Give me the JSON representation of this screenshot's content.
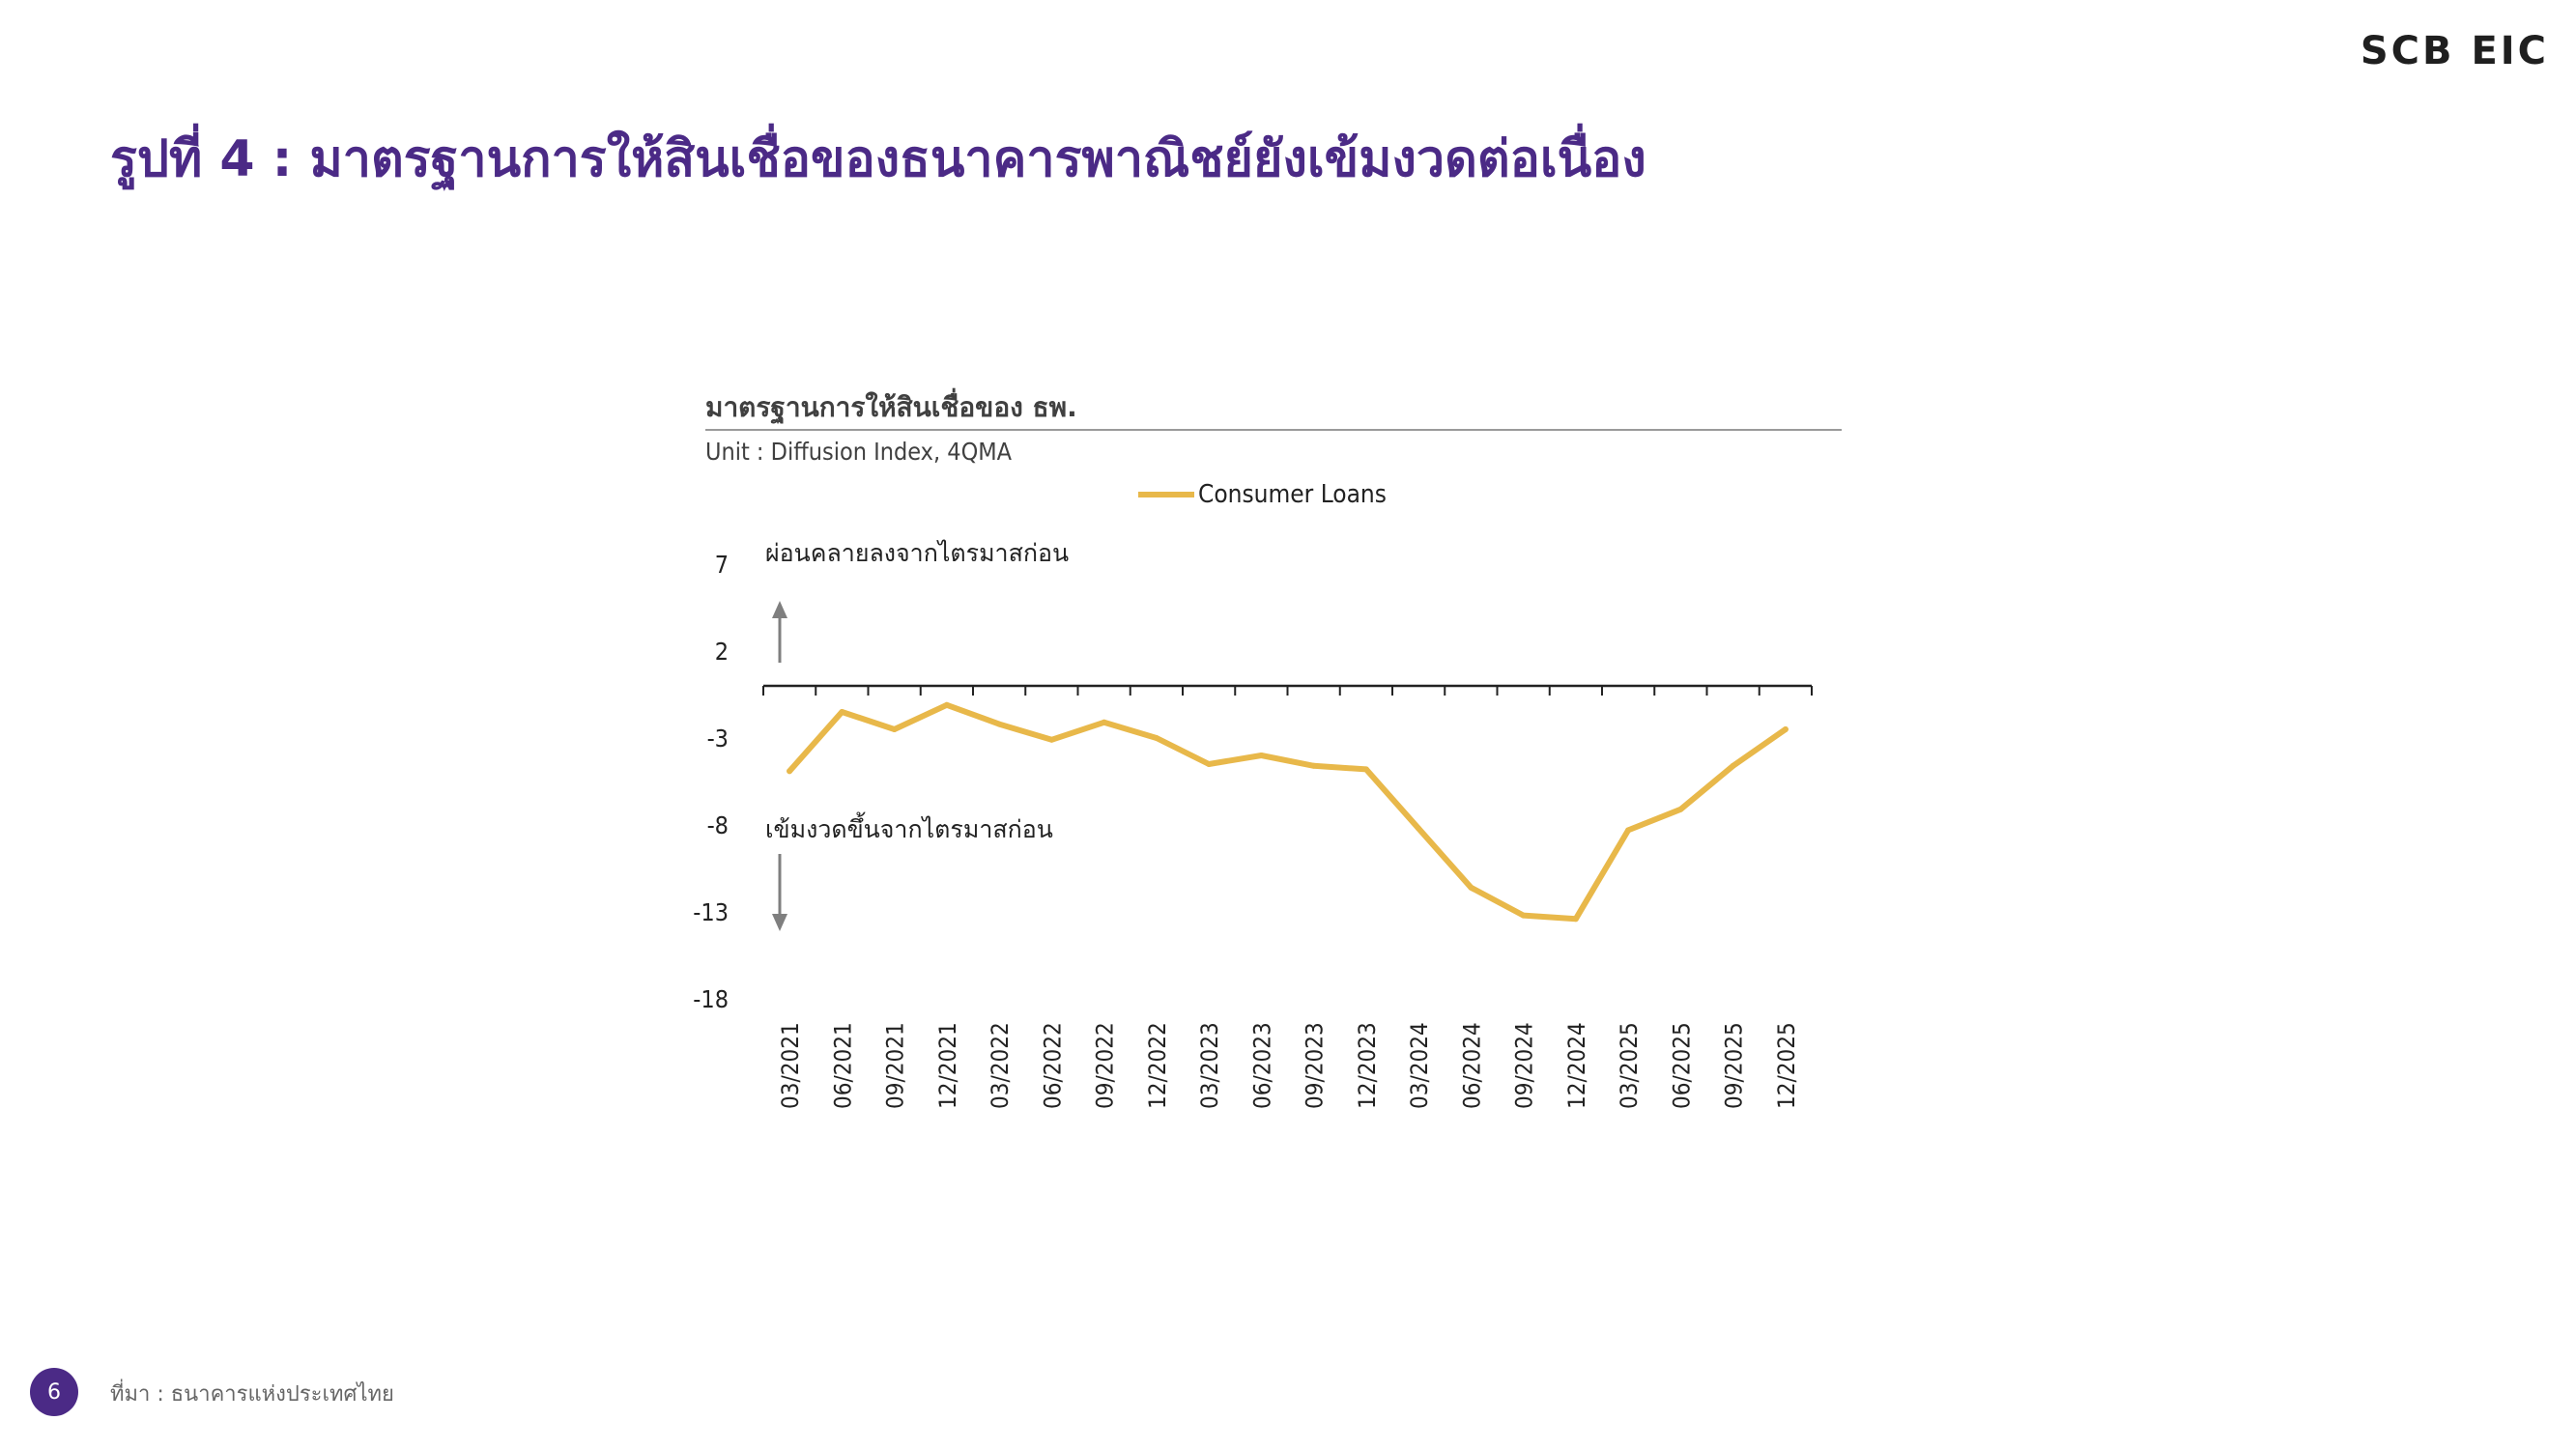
{
  "logo": "SCB EIC",
  "slide_title": "รูปที่ 4 : มาตรฐานการให้สินเชื่อของธนาคารพาณิชย์ยังเข้มงวดต่อเนื่อง",
  "annotations": {
    "up": "ผ่อนคลายลงจากไตรมาสก่อน",
    "down": "เข้มงวดขึ้นจากไตรมาสก่อน"
  },
  "footer": {
    "page_number": "6",
    "source": "ที่มา : ธนาคารแห่งประเทศไทย"
  },
  "chart_data": {
    "type": "line",
    "title": "มาตรฐานการให้สินเชื่อของ ธพ.",
    "subtitle": "Unit : Diffusion Index, 4QMA",
    "xlabel": "",
    "ylabel": "",
    "ylim": [
      -18,
      7
    ],
    "yticks": [
      "7",
      "2",
      "-3",
      "-8",
      "-13",
      "-18"
    ],
    "grid": false,
    "legend_position": "top",
    "categories": [
      "03/2021",
      "06/2021",
      "09/2021",
      "12/2021",
      "03/2022",
      "06/2022",
      "09/2022",
      "12/2022",
      "03/2023",
      "06/2023",
      "09/2023",
      "12/2023",
      "03/2024",
      "06/2024",
      "09/2024",
      "12/2024",
      "03/2025",
      "06/2025",
      "09/2025",
      "12/2025"
    ],
    "series": [
      {
        "name": "Consumer Loans",
        "color": "#e8b84a",
        "values": [
          -4.9,
          -1.5,
          -2.5,
          -1.1,
          -2.2,
          -3.1,
          -2.1,
          -3.0,
          -4.5,
          -4.0,
          -4.6,
          -4.8,
          -8.2,
          -11.6,
          -13.2,
          -13.4,
          -8.3,
          -7.1,
          -4.6,
          -2.5
        ]
      }
    ]
  }
}
